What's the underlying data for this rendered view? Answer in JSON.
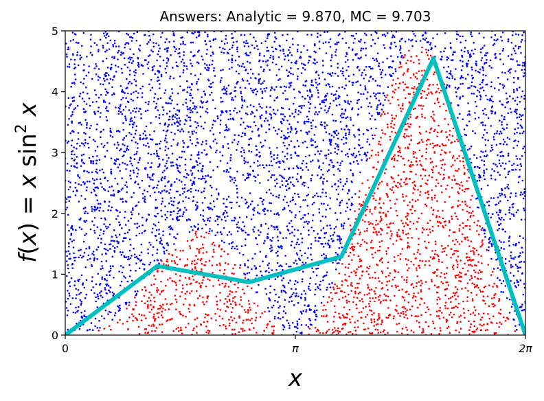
{
  "chart_data": {
    "type": "scatter",
    "title": "Answers: Analytic = 9.870, MC = 9.703",
    "xlabel": "x",
    "ylabel": "f(x) = x sin² x",
    "xlim": [
      0,
      6.2832
    ],
    "ylim": [
      0,
      5
    ],
    "x_ticks": [
      {
        "value": 0,
        "label": "0"
      },
      {
        "value": 3.1416,
        "label": "π"
      },
      {
        "value": 6.2832,
        "label": "2π"
      }
    ],
    "y_ticks": [
      0,
      1,
      2,
      3,
      4,
      5
    ],
    "grid": false,
    "line": {
      "color": "#00bfbf",
      "x": [
        0,
        1.2566,
        2.5133,
        3.7699,
        5.0265,
        6.2832
      ],
      "y": [
        0,
        1.136,
        0.87,
        1.29,
        4.549,
        0
      ]
    },
    "scatter": {
      "n_points": 6000,
      "below_color": "#ff0000",
      "above_color": "#0000ff",
      "rule": "below the curve f(x) = x sin²x"
    }
  }
}
